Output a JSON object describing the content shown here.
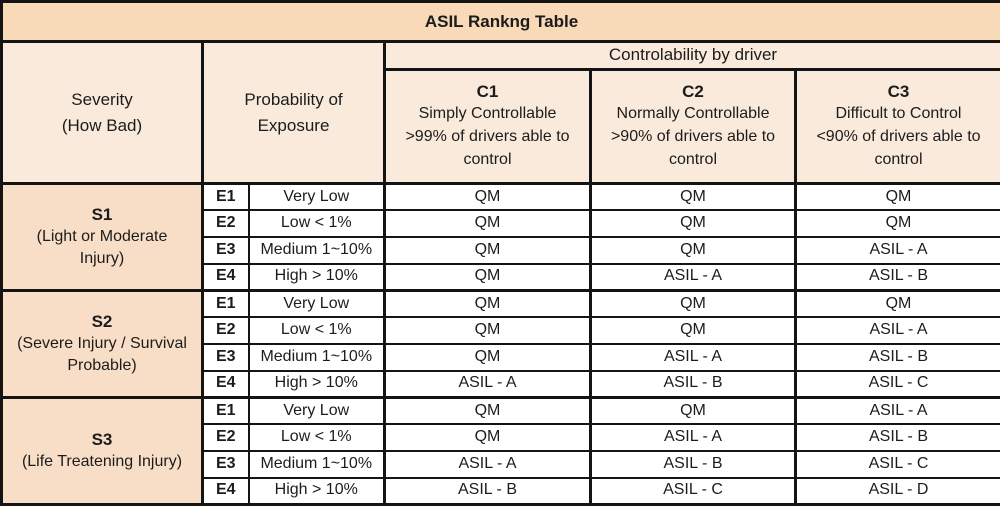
{
  "title": "ASIL Rankng Table",
  "colors": {
    "title_bg": "#F8D9B8",
    "header_bg": "#F9EADB",
    "severity_bg": "#F8DEC6",
    "cell_bg": "#FFFFFF",
    "border": "#141414",
    "text": "#1C1C1C"
  },
  "header": {
    "severity": {
      "line1": "Severity",
      "line2": "(How Bad)"
    },
    "probability": {
      "line1": "Probability of",
      "line2": "Exposure"
    },
    "controllability": "Controlability by driver",
    "c_columns": [
      {
        "code": "C1",
        "name": "Simply Controllable",
        "desc": ">99% of drivers able to control"
      },
      {
        "code": "C2",
        "name": "Normally Controllable",
        "desc": ">90% of drivers able to control"
      },
      {
        "code": "C3",
        "name": "Difficult to Control",
        "desc": "<90% of drivers able to control"
      }
    ]
  },
  "groups": [
    {
      "code": "S1",
      "desc": "(Light or Moderate Injury)",
      "rows": [
        {
          "e": "E1",
          "exposure": "Very Low",
          "values": [
            "QM",
            "QM",
            "QM"
          ]
        },
        {
          "e": "E2",
          "exposure": "Low < 1%",
          "values": [
            "QM",
            "QM",
            "QM"
          ]
        },
        {
          "e": "E3",
          "exposure": "Medium 1~10%",
          "values": [
            "QM",
            "QM",
            "ASIL - A"
          ]
        },
        {
          "e": "E4",
          "exposure": "High > 10%",
          "values": [
            "QM",
            "ASIL - A",
            "ASIL - B"
          ]
        }
      ]
    },
    {
      "code": "S2",
      "desc": "(Severe Injury / Survival Probable)",
      "rows": [
        {
          "e": "E1",
          "exposure": "Very Low",
          "values": [
            "QM",
            "QM",
            "QM"
          ]
        },
        {
          "e": "E2",
          "exposure": "Low < 1%",
          "values": [
            "QM",
            "QM",
            "ASIL - A"
          ]
        },
        {
          "e": "E3",
          "exposure": "Medium 1~10%",
          "values": [
            "QM",
            "ASIL - A",
            "ASIL - B"
          ]
        },
        {
          "e": "E4",
          "exposure": "High > 10%",
          "values": [
            "ASIL - A",
            "ASIL - B",
            "ASIL - C"
          ]
        }
      ]
    },
    {
      "code": "S3",
      "desc": "(Life Treatening Injury)",
      "rows": [
        {
          "e": "E1",
          "exposure": "Very Low",
          "values": [
            "QM",
            "QM",
            "ASIL - A"
          ]
        },
        {
          "e": "E2",
          "exposure": "Low < 1%",
          "values": [
            "QM",
            "ASIL - A",
            "ASIL - B"
          ]
        },
        {
          "e": "E3",
          "exposure": "Medium 1~10%",
          "values": [
            "ASIL - A",
            "ASIL - B",
            "ASIL - C"
          ]
        },
        {
          "e": "E4",
          "exposure": "High > 10%",
          "values": [
            "ASIL - B",
            "ASIL - C",
            "ASIL - D"
          ]
        }
      ]
    }
  ]
}
